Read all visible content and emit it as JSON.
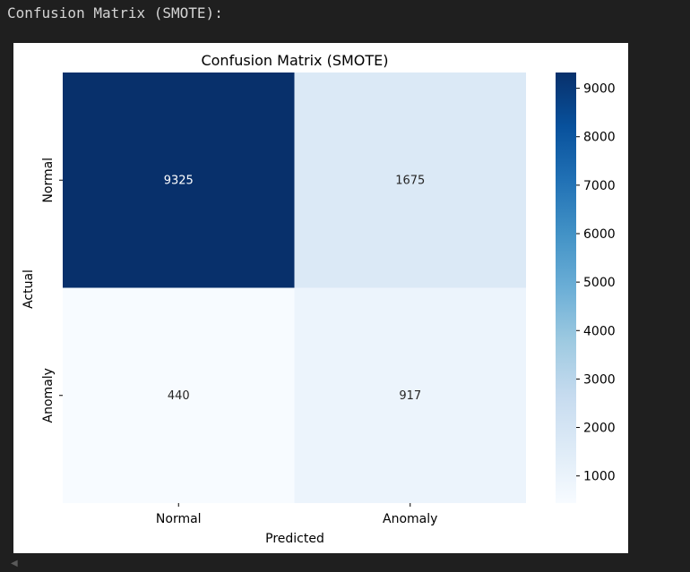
{
  "output": {
    "header": "Confusion Matrix (SMOTE):"
  },
  "chart_data": {
    "type": "heatmap",
    "title": "Confusion Matrix (SMOTE)",
    "xlabel": "Predicted",
    "ylabel": "Actual",
    "x_categories": [
      "Normal",
      "Anomaly"
    ],
    "y_categories": [
      "Normal",
      "Anomaly"
    ],
    "values": [
      [
        9325,
        1675
      ],
      [
        440,
        917
      ]
    ],
    "colormap": "Blues",
    "colorbar": {
      "ticks": [
        1000,
        2000,
        3000,
        4000,
        5000,
        6000,
        7000,
        8000,
        9000
      ],
      "range": [
        440,
        9325
      ]
    },
    "colors": {
      "max": "#08306b",
      "min": "#f7fbff",
      "text_dark": "#262626",
      "text_light": "#ffffff"
    }
  }
}
